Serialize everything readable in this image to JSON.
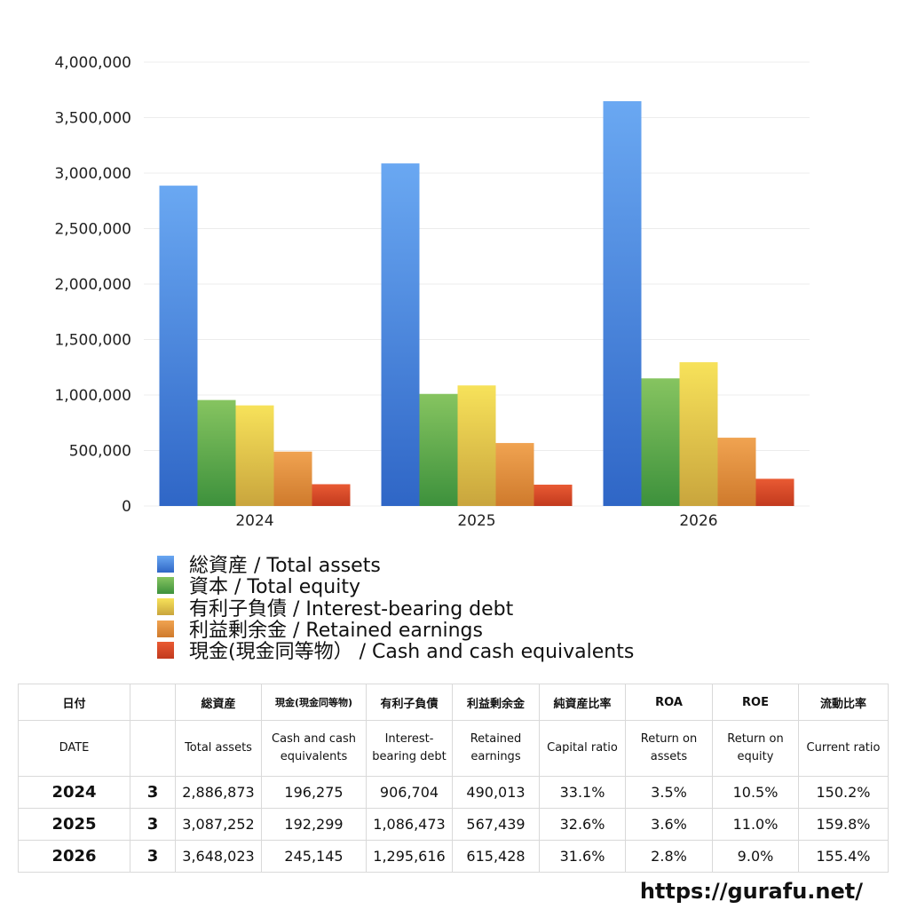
{
  "chart_data": {
    "type": "bar",
    "categories": [
      "2024",
      "2025",
      "2026"
    ],
    "ylim": [
      0,
      4000000
    ],
    "yticks": [
      "0",
      "500,000",
      "1,000,000",
      "1,500,000",
      "2,000,000",
      "2,500,000",
      "3,000,000",
      "3,500,000",
      "4,000,000"
    ],
    "ytick_values": [
      0,
      500000,
      1000000,
      1500000,
      2000000,
      2500000,
      3000000,
      3500000,
      4000000
    ],
    "grid": true,
    "legend_placement": "bottom",
    "series": [
      {
        "name": "総資産 / Total assets",
        "values": [
          2886873,
          3087252,
          3648023
        ],
        "color_top": "#6aa8f2",
        "color_bottom": "#2f66c6"
      },
      {
        "name": "資本 / Total equity",
        "values": [
          955000,
          1010000,
          1150000
        ],
        "color_top": "#86c460",
        "color_bottom": "#3d913c"
      },
      {
        "name": "有利子負債 / Interest-bearing debt",
        "values": [
          906704,
          1086473,
          1295616
        ],
        "color_top": "#f7e25a",
        "color_bottom": "#c9a53d"
      },
      {
        "name": "利益剰余金 / Retained earnings",
        "values": [
          490013,
          567439,
          615428
        ],
        "color_top": "#f0a351",
        "color_bottom": "#cf7a2c"
      },
      {
        "name": "現金(現金同等物） /  Cash and cash equivalents",
        "values": [
          196275,
          192299,
          245145
        ],
        "color_top": "#e95a33",
        "color_bottom": "#c23a1e"
      }
    ]
  },
  "table": {
    "header_jp": [
      "日付",
      "",
      "総資産",
      "現金(現金同等物)",
      "有利子負債",
      "利益剰余金",
      "純資産比率",
      "ROA",
      "ROE",
      "流動比率"
    ],
    "header_en": [
      "DATE",
      "",
      "Total assets",
      "Cash and cash equivalents",
      "Interest-bearing debt",
      "Retained earnings",
      "Capital ratio",
      "Return on assets",
      "Return on equity",
      "Current ratio"
    ],
    "rows": [
      [
        "2024",
        "3",
        "2,886,873",
        "196,275",
        "906,704",
        "490,013",
        "33.1%",
        "3.5%",
        "10.5%",
        "150.2%"
      ],
      [
        "2025",
        "3",
        "3,087,252",
        "192,299",
        "1,086,473",
        "567,439",
        "32.6%",
        "3.6%",
        "11.0%",
        "159.8%"
      ],
      [
        "2026",
        "3",
        "3,648,023",
        "245,145",
        "1,295,616",
        "615,428",
        "31.6%",
        "2.8%",
        "9.0%",
        "155.4%"
      ]
    ]
  },
  "footer": {
    "url": "https://gurafu.net/"
  }
}
